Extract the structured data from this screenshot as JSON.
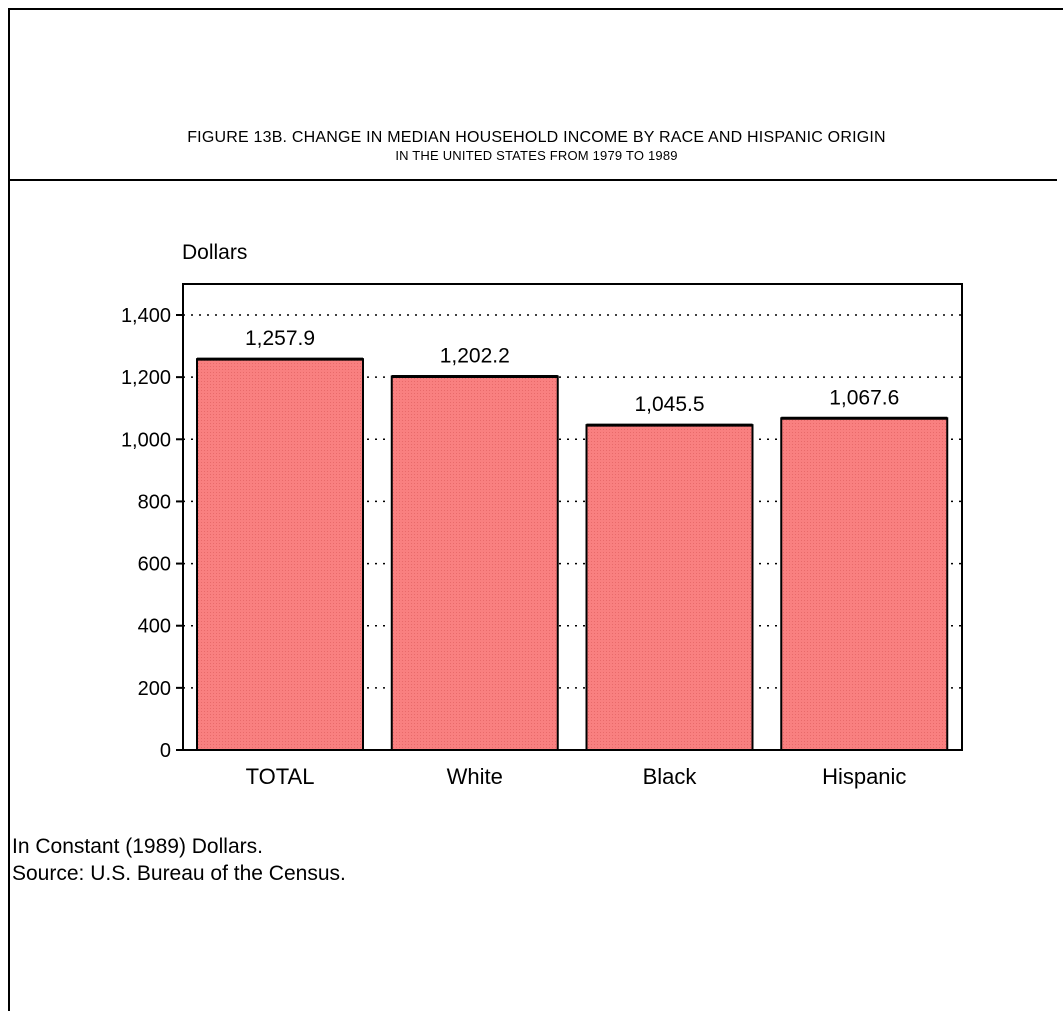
{
  "figure": {
    "title_line1": "FIGURE 13B.  CHANGE IN MEDIAN HOUSEHOLD INCOME BY RACE AND HISPANIC ORIGIN",
    "title_line2": "IN THE UNITED STATES FROM 1979 TO 1989"
  },
  "notes": {
    "line1": "In Constant (1989) Dollars.",
    "line2": "Source: U.S. Bureau of the Census."
  },
  "colors": {
    "bar_fill": "#f98080",
    "bar_stroke": "#000000",
    "grid": "#000000"
  },
  "chart_data": {
    "type": "bar",
    "title": "FIGURE 13B.  CHANGE IN MEDIAN HOUSEHOLD INCOME BY RACE AND HISPANIC ORIGIN IN THE UNITED STATES FROM 1979 TO 1989",
    "ylabel": "Dollars",
    "xlabel": "",
    "categories": [
      "TOTAL",
      "White",
      "Black",
      "Hispanic"
    ],
    "values": [
      1257.9,
      1202.2,
      1045.5,
      1067.6
    ],
    "value_labels": [
      "1,257.9",
      "1,202.2",
      "1,045.5",
      "1,067.6"
    ],
    "ylim": [
      0,
      1400
    ],
    "yticks": [
      0,
      200,
      400,
      600,
      800,
      1000,
      1200,
      1400
    ],
    "ytick_labels": [
      "0",
      "200",
      "400",
      "600",
      "800",
      "1,000",
      "1,200",
      "1,400"
    ],
    "grid": "dotted horizontal",
    "legend": "none"
  }
}
